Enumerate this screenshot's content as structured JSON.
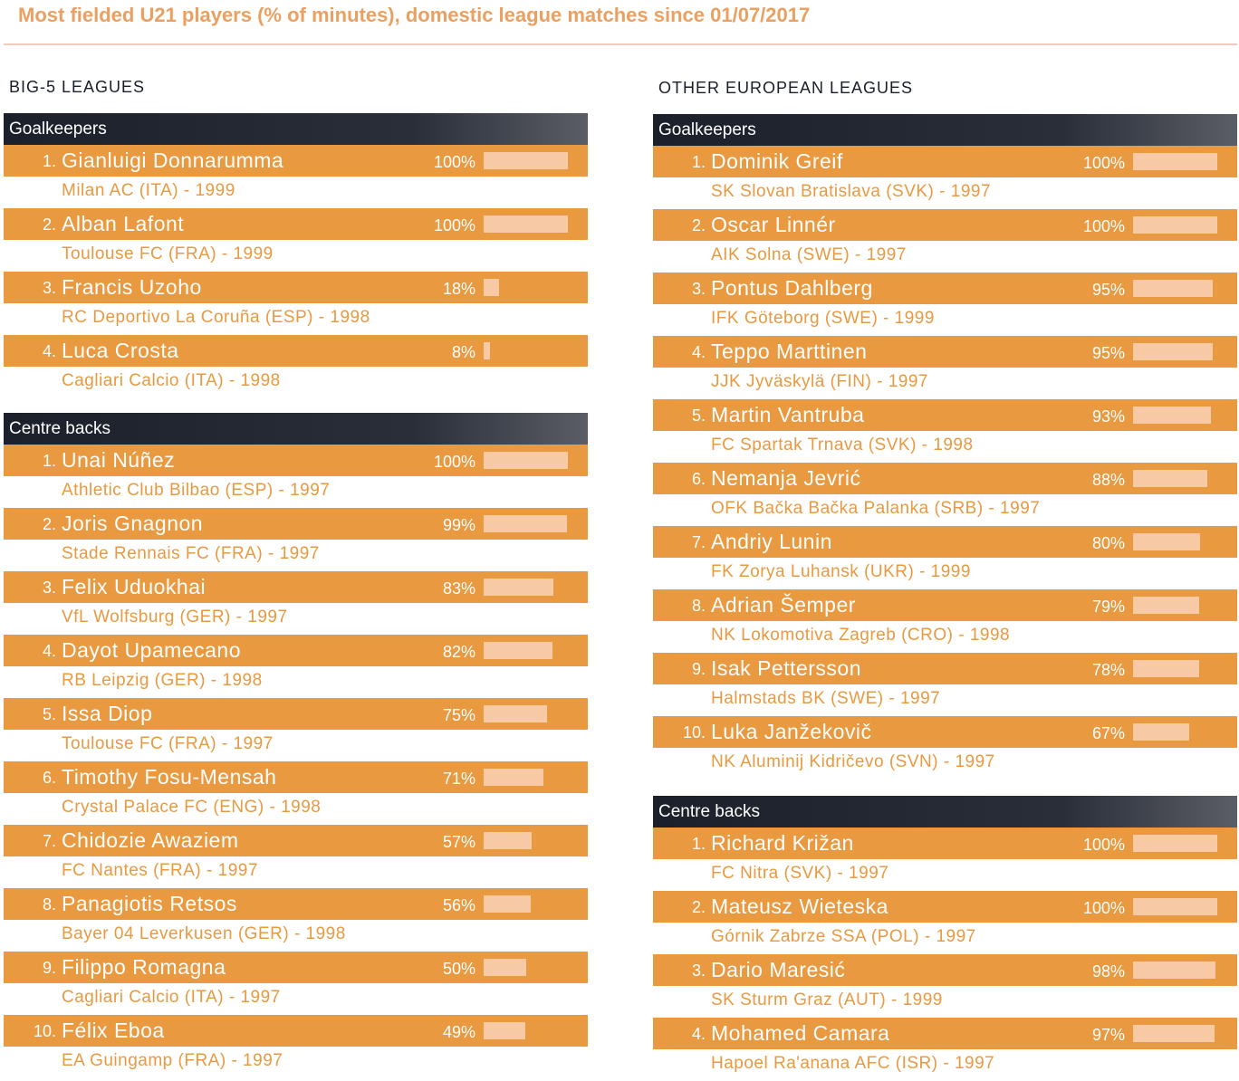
{
  "title": "Most fielded U21 players (% of minutes), domestic league matches since 01/07/2017",
  "colors": {
    "title": "#e9a060",
    "row": "#e9993f",
    "bar": "#f7c9a4",
    "header": "#1c202b",
    "club": "#e9993f"
  },
  "chart_data": [
    {
      "type": "bar",
      "heading": "BIG-5 LEAGUES",
      "xlim": [
        0,
        100
      ],
      "groups": [
        {
          "label": "Goalkeepers",
          "players": [
            {
              "rank": "1.",
              "name": "Gianluigi Donnarumma",
              "pct_label": "100%",
              "value": 100,
              "club": "Milan AC (ITA) - 1999"
            },
            {
              "rank": "2.",
              "name": "Alban Lafont",
              "pct_label": "100%",
              "value": 100,
              "club": "Toulouse FC (FRA) - 1999"
            },
            {
              "rank": "3.",
              "name": "Francis Uzoho",
              "pct_label": "18%",
              "value": 18,
              "club": "RC Deportivo La Coruña (ESP) - 1998"
            },
            {
              "rank": "4.",
              "name": "Luca Crosta",
              "pct_label": "8%",
              "value": 8,
              "club": "Cagliari Calcio (ITA) - 1998"
            }
          ]
        },
        {
          "label": "Centre backs",
          "players": [
            {
              "rank": "1.",
              "name": "Unai Núñez",
              "pct_label": "100%",
              "value": 100,
              "club": "Athletic Club Bilbao (ESP) - 1997"
            },
            {
              "rank": "2.",
              "name": "Joris Gnagnon",
              "pct_label": "99%",
              "value": 99,
              "club": "Stade Rennais FC (FRA) - 1997"
            },
            {
              "rank": "3.",
              "name": "Felix Uduokhai",
              "pct_label": "83%",
              "value": 83,
              "club": "VfL Wolfsburg (GER) - 1997"
            },
            {
              "rank": "4.",
              "name": "Dayot Upamecano",
              "pct_label": "82%",
              "value": 82,
              "club": "RB Leipzig (GER) - 1998"
            },
            {
              "rank": "5.",
              "name": "Issa Diop",
              "pct_label": "75%",
              "value": 75,
              "club": "Toulouse FC (FRA) - 1997"
            },
            {
              "rank": "6.",
              "name": "Timothy Fosu-Mensah",
              "pct_label": "71%",
              "value": 71,
              "club": "Crystal Palace FC (ENG) - 1998"
            },
            {
              "rank": "7.",
              "name": "Chidozie Awaziem",
              "pct_label": "57%",
              "value": 57,
              "club": "FC Nantes (FRA) - 1997"
            },
            {
              "rank": "8.",
              "name": "Panagiotis Retsos",
              "pct_label": "56%",
              "value": 56,
              "club": "Bayer 04 Leverkusen (GER) - 1998"
            },
            {
              "rank": "9.",
              "name": "Filippo Romagna",
              "pct_label": "50%",
              "value": 50,
              "club": "Cagliari Calcio (ITA) - 1997"
            },
            {
              "rank": "10.",
              "name": "Félix Eboa",
              "pct_label": "49%",
              "value": 49,
              "club": "EA Guingamp (FRA) - 1997"
            }
          ]
        }
      ]
    },
    {
      "type": "bar",
      "heading": "OTHER EUROPEAN LEAGUES",
      "xlim": [
        0,
        100
      ],
      "groups": [
        {
          "label": "Goalkeepers",
          "players": [
            {
              "rank": "1.",
              "name": "Dominik Greif",
              "pct_label": "100%",
              "value": 100,
              "club": "SK Slovan Bratislava (SVK) - 1997"
            },
            {
              "rank": "2.",
              "name": "Oscar Linnér",
              "pct_label": "100%",
              "value": 100,
              "club": "AIK Solna (SWE) - 1997"
            },
            {
              "rank": "3.",
              "name": "Pontus Dahlberg",
              "pct_label": "95%",
              "value": 95,
              "club": "IFK Göteborg (SWE) - 1999"
            },
            {
              "rank": "4.",
              "name": "Teppo Marttinen",
              "pct_label": "95%",
              "value": 95,
              "club": "JJK Jyväskylä (FIN) - 1997"
            },
            {
              "rank": "5.",
              "name": "Martin Vantruba",
              "pct_label": "93%",
              "value": 93,
              "club": "FC Spartak Trnava (SVK) - 1998"
            },
            {
              "rank": "6.",
              "name": "Nemanja Jevrić",
              "pct_label": "88%",
              "value": 88,
              "club": "OFK Bačka Bačka Palanka (SRB) - 1997"
            },
            {
              "rank": "7.",
              "name": "Andriy Lunin",
              "pct_label": "80%",
              "value": 80,
              "club": "FK Zorya Luhansk (UKR) - 1999"
            },
            {
              "rank": "8.",
              "name": "Adrian Šemper",
              "pct_label": "79%",
              "value": 79,
              "club": "NK Lokomotiva Zagreb (CRO) - 1998"
            },
            {
              "rank": "9.",
              "name": "Isak Pettersson",
              "pct_label": "78%",
              "value": 78,
              "club": "Halmstads BK (SWE) - 1997"
            },
            {
              "rank": "10.",
              "name": "Luka Janžekovič",
              "pct_label": "67%",
              "value": 67,
              "club": "NK Aluminij Kidričevo (SVN) - 1997"
            }
          ]
        },
        {
          "label": "Centre backs",
          "players": [
            {
              "rank": "1.",
              "name": "Richard Križan",
              "pct_label": "100%",
              "value": 100,
              "club": "FC Nitra (SVK) - 1997"
            },
            {
              "rank": "2.",
              "name": "Mateusz Wieteska",
              "pct_label": "100%",
              "value": 100,
              "club": "Górnik Zabrze SSA (POL) - 1997"
            },
            {
              "rank": "3.",
              "name": "Dario Maresić",
              "pct_label": "98%",
              "value": 98,
              "club": "SK Sturm Graz (AUT) - 1999"
            },
            {
              "rank": "4.",
              "name": "Mohamed Camara",
              "pct_label": "97%",
              "value": 97,
              "club": "Hapoel Ra'anana AFC (ISR) - 1997"
            }
          ]
        }
      ]
    }
  ]
}
